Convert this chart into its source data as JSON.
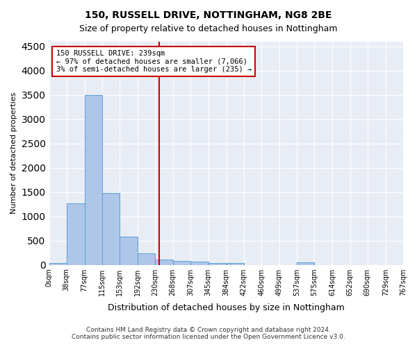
{
  "title1": "150, RUSSELL DRIVE, NOTTINGHAM, NG8 2BE",
  "title2": "Size of property relative to detached houses in Nottingham",
  "xlabel": "Distribution of detached houses by size in Nottingham",
  "ylabel": "Number of detached properties",
  "footer1": "Contains HM Land Registry data © Crown copyright and database right 2024.",
  "footer2": "Contains public sector information licensed under the Open Government Licence v3.0.",
  "annotation_title": "150 RUSSELL DRIVE: 239sqm",
  "annotation_line1": "← 97% of detached houses are smaller (7,066)",
  "annotation_line2": "3% of semi-detached houses are larger (235) →",
  "property_size": 239,
  "bar_edges": [
    0,
    38,
    77,
    115,
    153,
    192,
    230,
    268,
    307,
    345,
    384,
    422,
    460,
    499,
    537,
    575,
    614,
    652,
    690,
    729,
    767
  ],
  "bar_heights": [
    30,
    1270,
    3500,
    1480,
    580,
    240,
    110,
    80,
    60,
    40,
    30,
    0,
    0,
    0,
    50,
    0,
    0,
    0,
    0,
    0
  ],
  "bar_color": "#aec6e8",
  "bar_edgecolor": "#5a9fd4",
  "vline_color": "#cc0000",
  "vline_x": 239,
  "annotation_box_color": "#cc0000",
  "annotation_bg": "#ffffff",
  "ylim": [
    0,
    4600
  ],
  "yticks": [
    0,
    500,
    1000,
    1500,
    2000,
    2500,
    3000,
    3500,
    4000,
    4500
  ],
  "bg_color": "#e8edf5",
  "grid_color": "#ffffff",
  "tick_labels": [
    "0sqm",
    "38sqm",
    "77sqm",
    "115sqm",
    "153sqm",
    "192sqm",
    "230sqm",
    "268sqm",
    "307sqm",
    "345sqm",
    "384sqm",
    "422sqm",
    "460sqm",
    "499sqm",
    "537sqm",
    "575sqm",
    "614sqm",
    "652sqm",
    "690sqm",
    "729sqm",
    "767sqm"
  ]
}
